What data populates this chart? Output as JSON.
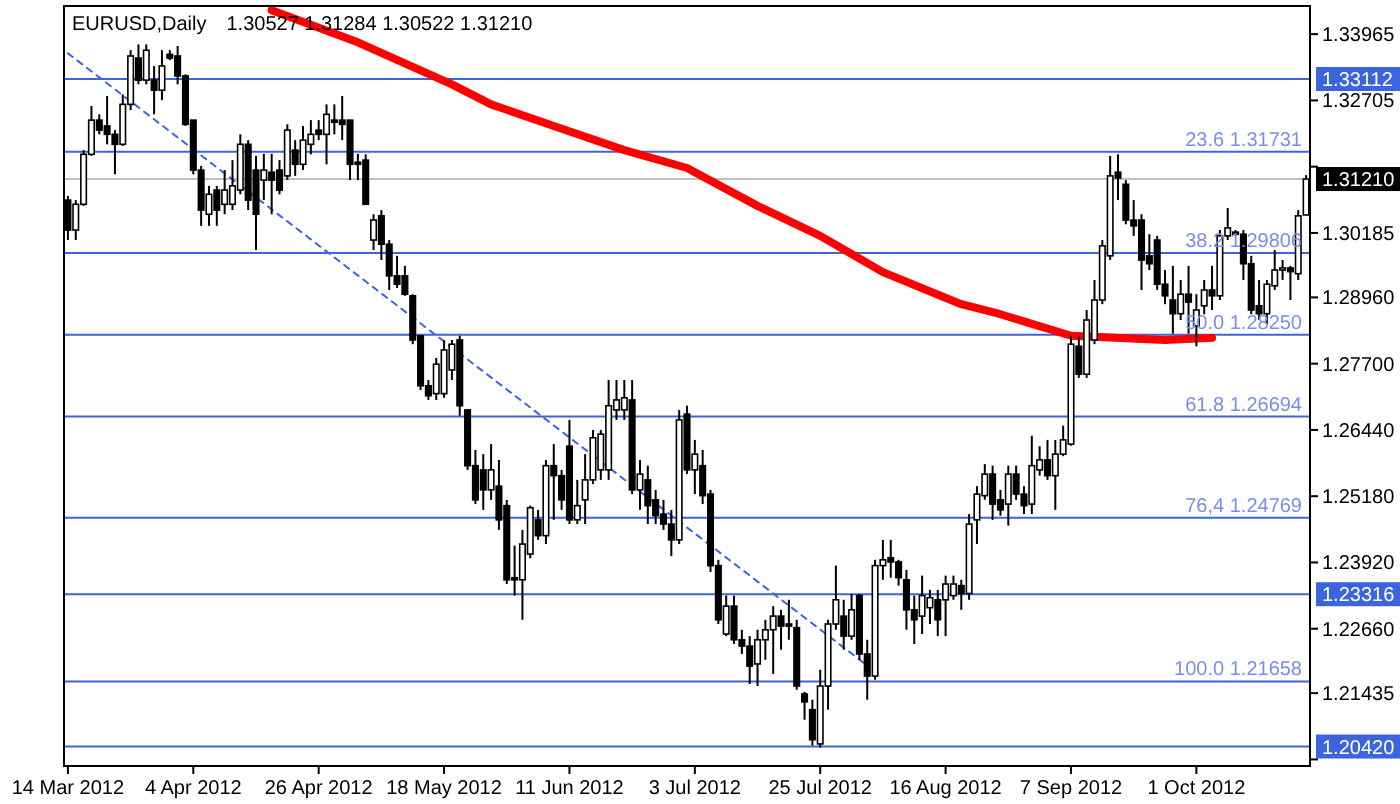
{
  "chart_data": {
    "type": "candlestick",
    "title": "EURUSD,Daily",
    "subtitle": "1.30527 1.31284 1.30522 1.31210",
    "categories": [
      "14 Mar 2012",
      null,
      null,
      null,
      null,
      null,
      null,
      null,
      null,
      null,
      null,
      null,
      null,
      null,
      null,
      null,
      "4 Apr 2012",
      null,
      null,
      null,
      null,
      null,
      null,
      null,
      null,
      null,
      null,
      null,
      null,
      null,
      null,
      null,
      "26 Apr 2012",
      null,
      null,
      null,
      null,
      null,
      null,
      null,
      null,
      null,
      null,
      null,
      null,
      null,
      null,
      null,
      "18 May 2012",
      null,
      null,
      null,
      null,
      null,
      null,
      null,
      null,
      null,
      null,
      null,
      null,
      null,
      null,
      null,
      "11 Jun 2012",
      null,
      null,
      null,
      null,
      null,
      null,
      null,
      null,
      null,
      null,
      null,
      null,
      null,
      null,
      null,
      "3 Jul 2012",
      null,
      null,
      null,
      null,
      null,
      null,
      null,
      null,
      null,
      null,
      null,
      null,
      null,
      null,
      null,
      "25 Jul 2012",
      null,
      null,
      null,
      null,
      null,
      null,
      null,
      null,
      null,
      null,
      null,
      null,
      null,
      null,
      null,
      "16 Aug 2012",
      null,
      null,
      null,
      null,
      null,
      null,
      null,
      null,
      null,
      null,
      null,
      null,
      null,
      null,
      null,
      "7 Sep 2012",
      null,
      null,
      null,
      null,
      null,
      null,
      null,
      null,
      null,
      null,
      null,
      null,
      null,
      null,
      null,
      "1 Oct 2012",
      null,
      null,
      null,
      null,
      null,
      null,
      null,
      null,
      null,
      null,
      null,
      null,
      null,
      null
    ],
    "ohlc": [
      [
        1.3081,
        1.3089,
        1.3005,
        1.3024
      ],
      [
        1.3024,
        1.3081,
        1.3005,
        1.3073
      ],
      [
        1.3073,
        1.3176,
        1.307,
        1.3168
      ],
      [
        1.3168,
        1.326,
        1.3165,
        1.3233
      ],
      [
        1.3233,
        1.3244,
        1.3206,
        1.3214
      ],
      [
        1.3222,
        1.3279,
        1.3187,
        1.3206
      ],
      [
        1.3206,
        1.3214,
        1.313,
        1.3187
      ],
      [
        1.3187,
        1.3282,
        1.3184,
        1.3263
      ],
      [
        1.3263,
        1.3366,
        1.3252,
        1.3355
      ],
      [
        1.3351,
        1.3377,
        1.3301,
        1.3309
      ],
      [
        1.3309,
        1.3377,
        1.3301,
        1.3366
      ],
      [
        1.3309,
        1.3336,
        1.3244,
        1.329
      ],
      [
        1.329,
        1.3366,
        1.3271,
        1.3336
      ],
      [
        1.3358,
        1.3366,
        1.3347,
        1.3351
      ],
      [
        1.3355,
        1.3374,
        1.3301,
        1.3317
      ],
      [
        1.3317,
        1.332,
        1.3222,
        1.3225
      ],
      [
        1.3233,
        1.3233,
        1.313,
        1.3138
      ],
      [
        1.3138,
        1.3146,
        1.3032,
        1.3062
      ],
      [
        1.3054,
        1.3108,
        1.3032,
        1.3092
      ],
      [
        1.31,
        1.3108,
        1.3032,
        1.3062
      ],
      [
        1.3073,
        1.3138,
        1.3054,
        1.31
      ],
      [
        1.3073,
        1.3157,
        1.3062,
        1.3108
      ],
      [
        1.31,
        1.3206,
        1.3092,
        1.3187
      ],
      [
        1.3187,
        1.3195,
        1.3062,
        1.3081
      ],
      [
        1.3138,
        1.3165,
        1.2986,
        1.3054
      ],
      [
        1.3119,
        1.3169,
        1.3081,
        1.3138
      ],
      [
        1.3134,
        1.3169,
        1.3054,
        1.3119
      ],
      [
        1.3138,
        1.3157,
        1.3092,
        1.31
      ],
      [
        1.3127,
        1.3225,
        1.3119,
        1.3214
      ],
      [
        1.3176,
        1.3195,
        1.3127,
        1.3149
      ],
      [
        1.3149,
        1.3222,
        1.3138,
        1.3195
      ],
      [
        1.3187,
        1.3233,
        1.3168,
        1.3206
      ],
      [
        1.3214,
        1.3233,
        1.3195,
        1.3206
      ],
      [
        1.3206,
        1.3263,
        1.3149,
        1.3244
      ],
      [
        1.3233,
        1.3263,
        1.3206,
        1.3229
      ],
      [
        1.3233,
        1.3279,
        1.3195,
        1.3225
      ],
      [
        1.3233,
        1.3233,
        1.3119,
        1.3149
      ],
      [
        1.3153,
        1.3169,
        1.3119,
        1.3149
      ],
      [
        1.3157,
        1.3168,
        1.3073,
        1.3073
      ],
      [
        1.3005,
        1.3054,
        1.2986,
        1.3043
      ],
      [
        1.3051,
        1.3062,
        1.2967,
        1.2997
      ],
      [
        1.2997,
        1.3005,
        1.291,
        1.2937
      ],
      [
        1.2937,
        1.2975,
        1.2914,
        1.2921
      ],
      [
        1.2937,
        1.2956,
        1.2899,
        1.2902
      ],
      [
        1.2899,
        1.2902,
        1.2807,
        1.2815
      ],
      [
        1.2823,
        1.2823,
        1.272,
        1.2728
      ],
      [
        1.2728,
        1.2739,
        1.2701,
        1.2709
      ],
      [
        1.2713,
        1.2781,
        1.2701,
        1.2769
      ],
      [
        1.2713,
        1.2815,
        1.2705,
        1.2796
      ],
      [
        1.2758,
        1.2815,
        1.2739,
        1.2807
      ],
      [
        1.2815,
        1.2823,
        1.2671,
        1.269
      ],
      [
        1.2682,
        1.2682,
        1.2568,
        1.2576
      ],
      [
        1.2576,
        1.2606,
        1.2503,
        1.2511
      ],
      [
        1.2568,
        1.2598,
        1.2492,
        1.253
      ],
      [
        1.253,
        1.2617,
        1.2511,
        1.2568
      ],
      [
        1.2537,
        1.2587,
        1.2454,
        1.2473
      ],
      [
        1.25,
        1.2511,
        1.2351,
        1.2359
      ],
      [
        1.2363,
        1.2424,
        1.2329,
        1.2359
      ],
      [
        1.2359,
        1.2454,
        1.2283,
        1.2427
      ],
      [
        1.2408,
        1.25,
        1.24,
        1.2496
      ],
      [
        1.2473,
        1.2492,
        1.2435,
        1.2443
      ],
      [
        1.2443,
        1.2587,
        1.2427,
        1.2576
      ],
      [
        1.2576,
        1.2617,
        1.2473,
        1.2557
      ],
      [
        1.2557,
        1.2568,
        1.2492,
        1.2511
      ],
      [
        1.2613,
        1.2663,
        1.2465,
        1.2473
      ],
      [
        1.2473,
        1.2549,
        1.2465,
        1.25
      ],
      [
        1.2511,
        1.2598,
        1.2465,
        1.2549
      ],
      [
        1.2549,
        1.2644,
        1.2541,
        1.2629
      ],
      [
        1.2568,
        1.2644,
        1.2549,
        1.2636
      ],
      [
        1.2568,
        1.2739,
        1.2549,
        1.269
      ],
      [
        1.2682,
        1.2739,
        1.2663,
        1.2701
      ],
      [
        1.2682,
        1.2739,
        1.2663,
        1.2705
      ],
      [
        1.2701,
        1.2739,
        1.2522,
        1.253
      ],
      [
        1.253,
        1.2587,
        1.2492,
        1.256
      ],
      [
        1.2549,
        1.2576,
        1.2465,
        1.25
      ],
      [
        1.2511,
        1.253,
        1.2465,
        1.2481
      ],
      [
        1.2484,
        1.2511,
        1.2454,
        1.2465
      ],
      [
        1.2465,
        1.2492,
        1.2404,
        1.2435
      ],
      [
        1.2435,
        1.2682,
        1.2427,
        1.2663
      ],
      [
        1.2674,
        1.269,
        1.256,
        1.2568
      ],
      [
        1.2568,
        1.2625,
        1.2522,
        1.2598
      ],
      [
        1.2576,
        1.2606,
        1.2503,
        1.2519
      ],
      [
        1.2522,
        1.253,
        1.2374,
        1.2386
      ],
      [
        1.2386,
        1.2397,
        1.2275,
        1.2283
      ],
      [
        1.2256,
        1.2329,
        1.2252,
        1.2309
      ],
      [
        1.2309,
        1.2329,
        1.2237,
        1.2245
      ],
      [
        1.2245,
        1.2264,
        1.2218,
        1.2233
      ],
      [
        1.2233,
        1.2252,
        1.2161,
        1.2195
      ],
      [
        1.2199,
        1.2264,
        1.2157,
        1.2245
      ],
      [
        1.2245,
        1.2283,
        1.2207,
        1.2264
      ],
      [
        1.2264,
        1.2309,
        1.218,
        1.229
      ],
      [
        1.229,
        1.2302,
        1.2226,
        1.2271
      ],
      [
        1.2275,
        1.2321,
        1.2245,
        1.2271
      ],
      [
        1.2268,
        1.2283,
        1.215,
        1.2157
      ],
      [
        1.2142,
        1.2146,
        1.2093,
        1.2127
      ],
      [
        1.2112,
        1.2131,
        1.2044,
        1.2055
      ],
      [
        1.2047,
        1.2188,
        1.204,
        1.2157
      ],
      [
        1.2157,
        1.2283,
        1.2112,
        1.2275
      ],
      [
        1.2275,
        1.2386,
        1.2264,
        1.2321
      ],
      [
        1.229,
        1.2321,
        1.2226,
        1.2252
      ],
      [
        1.2252,
        1.2332,
        1.2245,
        1.2302
      ],
      [
        1.2329,
        1.2332,
        1.2207,
        1.2218
      ],
      [
        1.2218,
        1.2245,
        1.2131,
        1.2176
      ],
      [
        1.2176,
        1.2397,
        1.2169,
        1.2386
      ],
      [
        1.2386,
        1.2435,
        1.2359,
        1.2397
      ],
      [
        1.2401,
        1.2435,
        1.2363,
        1.2393
      ],
      [
        1.2393,
        1.2397,
        1.2348,
        1.2363
      ],
      [
        1.2359,
        1.2378,
        1.2264,
        1.2302
      ],
      [
        1.2302,
        1.2329,
        1.2237,
        1.2283
      ],
      [
        1.229,
        1.2367,
        1.2256,
        1.2329
      ],
      [
        1.2306,
        1.234,
        1.2275,
        1.2325
      ],
      [
        1.2321,
        1.234,
        1.2252,
        1.2283
      ],
      [
        1.2321,
        1.2367,
        1.2252,
        1.2351
      ],
      [
        1.2329,
        1.2367,
        1.2321,
        1.2351
      ],
      [
        1.2348,
        1.2359,
        1.2302,
        1.2333
      ],
      [
        1.2333,
        1.2484,
        1.2321,
        1.2465
      ],
      [
        1.2473,
        1.2537,
        1.2427,
        1.2522
      ],
      [
        1.2519,
        1.2579,
        1.2511,
        1.256
      ],
      [
        1.256,
        1.2576,
        1.2473,
        1.2503
      ],
      [
        1.2511,
        1.253,
        1.2481,
        1.2492
      ],
      [
        1.2503,
        1.2576,
        1.2462,
        1.256
      ],
      [
        1.256,
        1.2576,
        1.2511,
        1.2522
      ],
      [
        1.2522,
        1.2537,
        1.2484,
        1.25
      ],
      [
        1.2503,
        1.2633,
        1.2484,
        1.2576
      ],
      [
        1.2568,
        1.2613,
        1.2557,
        1.2587
      ],
      [
        1.2587,
        1.2625,
        1.2549,
        1.2557
      ],
      [
        1.2557,
        1.2625,
        1.2492,
        1.2598
      ],
      [
        1.2598,
        1.2652,
        1.2594,
        1.2625
      ],
      [
        1.2617,
        1.2823,
        1.2614,
        1.2807
      ],
      [
        1.2803,
        1.2823,
        1.2743,
        1.275
      ],
      [
        1.275,
        1.2872,
        1.2743,
        1.2853
      ],
      [
        1.2815,
        1.2929,
        1.2807,
        1.2891
      ],
      [
        1.2891,
        1.3005,
        1.2883,
        1.2994
      ],
      [
        1.2975,
        1.3165,
        1.2967,
        1.3127
      ],
      [
        1.3134,
        1.3168,
        1.3081,
        1.3123
      ],
      [
        1.3111,
        1.3119,
        1.3035,
        1.3043
      ],
      [
        1.3043,
        1.3081,
        1.3013,
        1.3032
      ],
      [
        1.3043,
        1.3054,
        1.291,
        1.2967
      ],
      [
        1.2975,
        1.3016,
        1.2948,
        1.296
      ],
      [
        1.3005,
        1.3013,
        1.291,
        1.2921
      ],
      [
        1.2921,
        1.2948,
        1.2883,
        1.2899
      ],
      [
        1.2891,
        1.2956,
        1.2827,
        1.2865
      ],
      [
        1.2865,
        1.2929,
        1.2853,
        1.2902
      ],
      [
        1.2902,
        1.2956,
        1.2827,
        1.2887
      ],
      [
        1.2842,
        1.2902,
        1.2803,
        1.2872
      ],
      [
        1.288,
        1.2929,
        1.2864,
        1.291
      ],
      [
        1.291,
        1.2956,
        1.2872,
        1.2899
      ],
      [
        1.2899,
        1.3024,
        1.2891,
        1.3013
      ],
      [
        1.3013,
        1.3066,
        1.3005,
        1.3028
      ],
      [
        1.302,
        1.3024,
        1.3013,
        1.3016
      ],
      [
        1.3016,
        1.3024,
        1.2929,
        1.296
      ],
      [
        1.296,
        1.2975,
        1.2864,
        1.2872
      ],
      [
        1.288,
        1.2929,
        1.2853,
        1.2865
      ],
      [
        1.2865,
        1.2929,
        1.2845,
        1.2921
      ],
      [
        1.2918,
        1.2986,
        1.291,
        1.2948
      ],
      [
        1.2948,
        1.2967,
        1.2929,
        1.2952
      ],
      [
        1.2952,
        1.2956,
        1.2891,
        1.2945
      ],
      [
        1.2941,
        1.3062,
        1.2929,
        1.3051
      ],
      [
        1.30527,
        1.31284,
        1.30522,
        1.3121
      ]
    ],
    "series": [
      {
        "type": "line",
        "color": "#ff0000",
        "values": [
          null,
          null,
          null,
          null,
          null,
          null,
          null,
          null,
          null,
          null,
          null,
          null,
          null,
          null,
          null,
          null,
          null,
          null,
          null,
          null,
          null,
          null,
          null,
          null,
          null,
          null,
          1.3442,
          null,
          null,
          null,
          null,
          null,
          null,
          null,
          null,
          null,
          null,
          1.3381,
          null,
          null,
          null,
          null,
          null,
          null,
          null,
          null,
          null,
          null,
          null,
          1.3301,
          null,
          null,
          null,
          null,
          1.3263,
          null,
          null,
          null,
          null,
          null,
          null,
          null,
          1.3222,
          null,
          null,
          null,
          null,
          null,
          null,
          null,
          null,
          1.3176,
          null,
          null,
          null,
          null,
          null,
          null,
          null,
          1.3142,
          null,
          null,
          null,
          null,
          null,
          null,
          null,
          null,
          1.307,
          null,
          null,
          null,
          null,
          null,
          null,
          null,
          1.3013,
          null,
          null,
          null,
          null,
          null,
          null,
          null,
          1.2944,
          null,
          null,
          null,
          null,
          null,
          null,
          null,
          null,
          null,
          1.2883,
          null,
          null,
          null,
          null,
          1.2864,
          null,
          null,
          null,
          null,
          null,
          null,
          null,
          null,
          1.2823,
          null,
          null,
          null,
          null,
          null,
          null,
          null,
          null,
          null,
          null,
          null,
          1.2815,
          null,
          null,
          null,
          null,
          null,
          1.2819,
          null,
          null,
          null,
          null,
          null,
          null,
          null,
          null,
          null,
          null,
          null,
          null
        ]
      },
      {
        "type": "line",
        "color": "#3c64dc",
        "line_style": "dashed",
        "values": [
          1.336,
          null,
          null,
          null,
          null,
          null,
          null,
          null,
          null,
          null,
          null,
          null,
          null,
          null,
          null,
          null,
          null,
          null,
          null,
          null,
          null,
          null,
          null,
          null,
          null,
          null,
          null,
          null,
          null,
          null,
          null,
          null,
          null,
          null,
          null,
          null,
          null,
          null,
          null,
          null,
          null,
          null,
          null,
          null,
          null,
          null,
          null,
          null,
          null,
          null,
          null,
          null,
          null,
          null,
          null,
          null,
          null,
          null,
          null,
          null,
          null,
          null,
          null,
          null,
          null,
          null,
          null,
          null,
          null,
          null,
          null,
          null,
          null,
          null,
          null,
          null,
          null,
          null,
          null,
          null,
          null,
          null,
          null,
          null,
          null,
          null,
          null,
          null,
          null,
          null,
          null,
          null,
          null,
          null,
          null,
          null,
          null,
          null,
          null,
          null,
          null,
          null,
          1.2196,
          null,
          null,
          null,
          null,
          null,
          null,
          null,
          null,
          null,
          null,
          null,
          null,
          null,
          null,
          null,
          null,
          null,
          null,
          null,
          null,
          null,
          null,
          null,
          null,
          null,
          null,
          null,
          null,
          null,
          null,
          null,
          null,
          null,
          null,
          null,
          null,
          null,
          null,
          null,
          null,
          null,
          null,
          null,
          null,
          null,
          null,
          null,
          null,
          null,
          null,
          null,
          null,
          null,
          null,
          null,
          null
        ]
      }
    ],
    "ylim": [
      1.2005,
      1.345
    ],
    "yticks": [
      1.33965,
      1.32705,
      {
        "value": 1.31445,
        "label": null
      },
      1.30185,
      {
        "value": 1.2896,
        "label": "1.28960"
      },
      {
        "value": 1.277,
        "label": "1.27700"
      },
      {
        "value": 1.2644,
        "label": "1.26440"
      },
      {
        "value": 1.2518,
        "label": "1.25180"
      },
      {
        "value": 1.2392,
        "label": "1.23920"
      },
      {
        "value": 1.2266,
        "label": "1.22660"
      },
      1.21435,
      {
        "value": 1.20175,
        "label": null
      }
    ],
    "ref_lines": [
      {
        "axis": "y",
        "value": 1.31731,
        "label": "23.6 1.31731",
        "color": "#3c64dc"
      },
      {
        "axis": "y",
        "value": 1.29806,
        "label": "38.2 1.29806",
        "color": "#3c64dc"
      },
      {
        "axis": "y",
        "value": 1.2825,
        "label": "50.0 1.28250",
        "color": "#3c64dc"
      },
      {
        "axis": "y",
        "value": 1.26694,
        "label": "61.8 1.26694",
        "color": "#3c64dc"
      },
      {
        "axis": "y",
        "value": 1.24769,
        "label": "76,4 1.24769",
        "color": "#3c64dc"
      },
      {
        "axis": "y",
        "value": 1.21658,
        "label": "100.0 1.21658",
        "color": "#3c64dc"
      },
      {
        "axis": "y",
        "value": 1.33112,
        "label": "1.33112",
        "color": "#3c64dc"
      },
      {
        "axis": "y",
        "value": 1.23316,
        "label": "1.23316",
        "color": "#3c64dc"
      },
      {
        "axis": "y",
        "value": 1.2042,
        "label": "1.20420",
        "color": "#3c64dc"
      },
      {
        "axis": "y",
        "value": 1.3121,
        "label": "1.31210",
        "color": "#c0c0c0"
      }
    ]
  }
}
